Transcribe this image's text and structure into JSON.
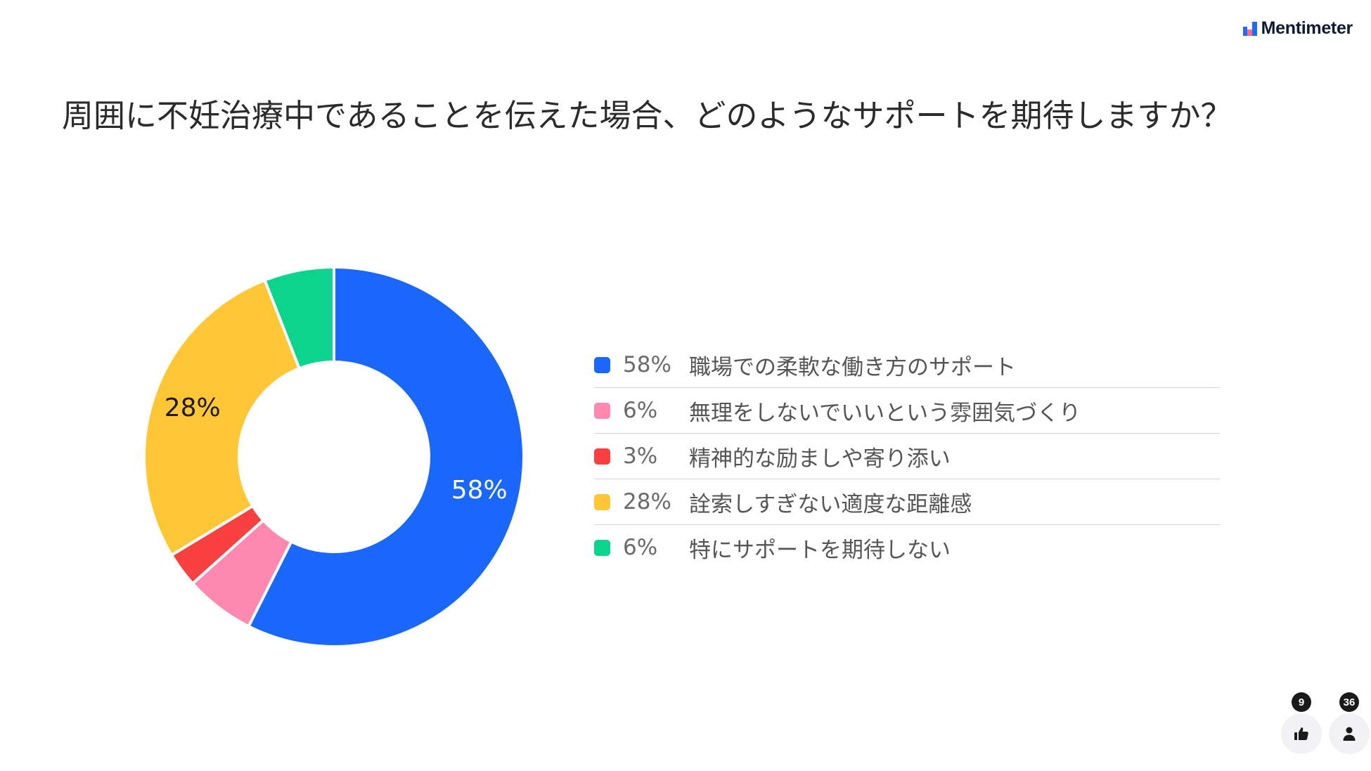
{
  "brand": {
    "name": "Mentimeter"
  },
  "question": {
    "title": "周囲に不妊治療中であることを伝えた場合、どのようなサポートを期待しますか？"
  },
  "chart_data": {
    "type": "pie",
    "variant": "donut",
    "title": "周囲に不妊治療中であることを伝えた場合、どのようなサポートを期待しますか？",
    "categories": [
      "職場での柔軟な働き方のサポート",
      "無理をしないでいいという雰囲気づくり",
      "精神的な励ましや寄り添い",
      "詮索しすぎない適度な距離感",
      "特にサポートを期待しない"
    ],
    "values": [
      58,
      6,
      3,
      28,
      6
    ],
    "value_labels": [
      "58%",
      "6%",
      "3%",
      "28%",
      "6%"
    ],
    "colors": [
      "#1967FB",
      "#FF88B1",
      "#F94040",
      "#FFC636",
      "#0CD48E"
    ],
    "slice_labels_shown": [
      "58%",
      "",
      "",
      "28%",
      ""
    ],
    "legend_position": "right"
  },
  "footer": {
    "reactions": {
      "icon": "thumbs-up-icon",
      "count": "9"
    },
    "participants": {
      "icon": "person-icon",
      "count": "36"
    }
  }
}
